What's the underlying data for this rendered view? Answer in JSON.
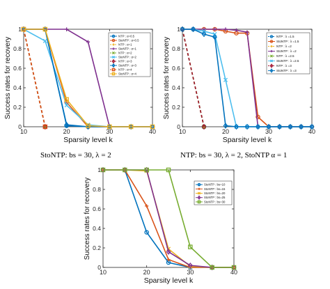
{
  "figure": {
    "caption_a": "StoNTP: bs = 30, λ = 2",
    "caption_b": "NTP: bs = 30, λ = 2, StoNTP α = 1"
  },
  "chart_data": [
    {
      "type": "line",
      "xlabel": "Sparsity level k",
      "ylabel": "Success rates for recovery",
      "xlim": [
        10,
        40
      ],
      "ylim": [
        0,
        1
      ],
      "xticks": [
        "10",
        "20",
        "30",
        "40"
      ],
      "yticks": [
        "0",
        "0.2",
        "0.4",
        "0.6",
        "0.8",
        "1"
      ],
      "legend_position": "top-right",
      "series": [
        {
          "name": "NTP : α=0.5",
          "color": "#0072BD",
          "marker": "circle",
          "dash": "solid",
          "x": [
            10,
            15,
            20,
            25,
            30,
            35,
            40
          ],
          "y": [
            1,
            1,
            0.01,
            0,
            0,
            0,
            0
          ]
        },
        {
          "name": "StoNTP : α=0.5",
          "color": "#D95319",
          "marker": "circle",
          "dash": "solid",
          "x": [
            10,
            15,
            20,
            25,
            30,
            35,
            40
          ],
          "y": [
            1,
            1,
            0.25,
            0,
            0,
            0,
            0
          ]
        },
        {
          "name": "NTP : α=1",
          "color": "#EDB120",
          "marker": "plus",
          "dash": "dashed",
          "x": [
            10,
            15
          ],
          "y": [
            1,
            0
          ]
        },
        {
          "name": "StoNTP : α=1",
          "color": "#7E2F8E",
          "marker": "plus",
          "dash": "solid",
          "x": [
            10,
            15,
            20,
            25,
            30,
            35,
            40
          ],
          "y": [
            1,
            1,
            1,
            0.87,
            0,
            0,
            0
          ]
        },
        {
          "name": "NTP : α=2",
          "color": "#77AC30",
          "marker": "x",
          "dash": "dashed",
          "x": [
            10,
            15
          ],
          "y": [
            1,
            0
          ]
        },
        {
          "name": "StoNTP : α=2",
          "color": "#4DBEEE",
          "marker": "x",
          "dash": "solid",
          "x": [
            10,
            15,
            20,
            25,
            30,
            35,
            40
          ],
          "y": [
            1,
            0.88,
            0.22,
            0.02,
            0,
            0,
            0
          ]
        },
        {
          "name": "NTP : α=3",
          "color": "#A2142F",
          "marker": "diamond",
          "dash": "dashed",
          "x": [
            10,
            15
          ],
          "y": [
            1,
            0
          ]
        },
        {
          "name": "StoNTP : α=3",
          "color": "#0072BD",
          "marker": "diamond",
          "dash": "solid",
          "x": [
            10,
            15,
            20,
            25,
            30,
            35,
            40
          ],
          "y": [
            1,
            1,
            0.02,
            0,
            0,
            0,
            0
          ]
        },
        {
          "name": "NTP : α=4",
          "color": "#D95319",
          "marker": "square",
          "dash": "dashed",
          "x": [
            10,
            15
          ],
          "y": [
            1,
            0
          ]
        },
        {
          "name": "StoNTP : α=4",
          "color": "#EDB120",
          "marker": "square",
          "dash": "solid",
          "x": [
            10,
            15,
            20,
            25,
            30,
            35,
            40
          ],
          "y": [
            1,
            1,
            0.28,
            0.01,
            0,
            0,
            0
          ]
        }
      ]
    },
    {
      "type": "line",
      "xlabel": "Sparsity level k",
      "ylabel": "Success rates for recovery",
      "xlim": [
        10,
        40
      ],
      "ylim": [
        0,
        1
      ],
      "xticks": [
        "10",
        "20",
        "30",
        "40"
      ],
      "yticks": [
        "0",
        "0.2",
        "0.4",
        "0.6",
        "0.8",
        "1"
      ],
      "legend_position": "top-right",
      "series": [
        {
          "name": "NTP : λ =1.5",
          "color": "#0072BD",
          "marker": "circle",
          "dash": "dashed",
          "x": [
            10,
            15
          ],
          "y": [
            1,
            0
          ]
        },
        {
          "name": "StoNTP : λ =1.5",
          "color": "#D95319",
          "marker": "circle",
          "dash": "solid",
          "x": [
            10,
            12.5,
            15,
            17.5,
            20,
            22.5,
            25,
            27.5,
            30,
            32.5,
            35,
            37.5,
            40
          ],
          "y": [
            1,
            1,
            1,
            1,
            0.98,
            0.96,
            0.96,
            0.1,
            0,
            0,
            0,
            0,
            0
          ]
        },
        {
          "name": "NTP : λ =2",
          "color": "#EDB120",
          "marker": "plus",
          "dash": "dashed",
          "x": [
            10,
            15
          ],
          "y": [
            1,
            0
          ]
        },
        {
          "name": "StoNTP : λ =2",
          "color": "#7E2F8E",
          "marker": "plus",
          "dash": "solid",
          "x": [
            10,
            12.5,
            15,
            17.5,
            20,
            22.5,
            25,
            27.5,
            30,
            32.5,
            35,
            37.5,
            40
          ],
          "y": [
            1,
            1,
            1,
            1,
            1,
            0.99,
            0.97,
            0,
            0,
            0,
            0,
            0,
            0
          ]
        },
        {
          "name": "NTP : λ =2.5",
          "color": "#77AC30",
          "marker": "x",
          "dash": "dashed",
          "x": [
            10,
            15
          ],
          "y": [
            1,
            0
          ]
        },
        {
          "name": "StoNTP : λ =2.5",
          "color": "#4DBEEE",
          "marker": "x",
          "dash": "solid",
          "x": [
            10,
            12.5,
            15,
            17.5,
            20,
            22.5,
            25,
            27.5,
            30,
            32.5,
            35,
            37.5,
            40
          ],
          "y": [
            1,
            1,
            0.98,
            0.95,
            0.48,
            0,
            0,
            0,
            0,
            0,
            0,
            0,
            0
          ]
        },
        {
          "name": "NTP : λ =3",
          "color": "#A2142F",
          "marker": "diamond",
          "dash": "dashed",
          "x": [
            10,
            15
          ],
          "y": [
            1,
            0
          ]
        },
        {
          "name": "StoNTP : λ =3",
          "color": "#0072BD",
          "marker": "diamond",
          "dash": "solid",
          "x": [
            10,
            12.5,
            15,
            17.5,
            20,
            22.5,
            25,
            27.5,
            30,
            32.5,
            35,
            37.5,
            40
          ],
          "y": [
            1,
            1,
            0.95,
            0.92,
            0.01,
            0,
            0,
            0,
            0,
            0,
            0,
            0,
            0
          ]
        }
      ]
    },
    {
      "type": "line",
      "xlabel": "Sparsity level k",
      "ylabel": "Success rates for recovery",
      "xlim": [
        10,
        40
      ],
      "ylim": [
        0,
        1
      ],
      "xticks": [
        "10",
        "20",
        "30",
        "40"
      ],
      "yticks": [
        "0",
        "0.2",
        "0.4",
        "0.6",
        "0.8",
        "1"
      ],
      "legend_position": "top-right",
      "series": [
        {
          "name": "StoNTP : bs=10",
          "color": "#0072BD",
          "marker": "circle",
          "dash": "solid",
          "x": [
            10,
            15,
            20,
            25,
            30,
            35,
            40
          ],
          "y": [
            1,
            1,
            0.36,
            0.05,
            0,
            0,
            0
          ]
        },
        {
          "name": "StoNTP : bs=15",
          "color": "#D95319",
          "marker": "plus",
          "dash": "solid",
          "x": [
            10,
            15,
            20,
            25,
            30,
            35,
            40
          ],
          "y": [
            1,
            1,
            0.63,
            0.08,
            0,
            0,
            0
          ]
        },
        {
          "name": "StoNTP : bs=20",
          "color": "#EDB120",
          "marker": "x",
          "dash": "solid",
          "x": [
            10,
            15,
            20,
            25,
            30,
            35,
            40
          ],
          "y": [
            1,
            1,
            0.99,
            0.19,
            0.01,
            0,
            0
          ]
        },
        {
          "name": "StoNTP : bs=25",
          "color": "#7E2F8E",
          "marker": "diamond",
          "dash": "solid",
          "x": [
            10,
            15,
            20,
            25,
            30,
            35,
            40
          ],
          "y": [
            1,
            1,
            1,
            0.16,
            0.02,
            0,
            0
          ]
        },
        {
          "name": "StoNTP : bs=30",
          "color": "#77AC30",
          "marker": "square",
          "dash": "solid",
          "x": [
            10,
            15,
            20,
            25,
            30,
            35,
            40
          ],
          "y": [
            1,
            1,
            1,
            1,
            0.21,
            0,
            0
          ]
        }
      ]
    }
  ]
}
